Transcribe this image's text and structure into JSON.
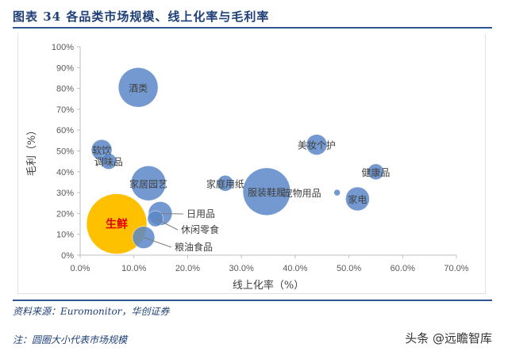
{
  "header": {
    "title": "图表 34   各品类市场规模、线上化率与毛利率"
  },
  "footer": {
    "source": "资料来源：Euromonitor，华创证券",
    "note": "注：圆圈大小代表市场规模",
    "watermark": "头条 @远瞻智库"
  },
  "chart_data": {
    "type": "bubble",
    "xlabel": "线上化率（%）",
    "ylabel": "毛利（%）",
    "xlim": [
      0,
      70
    ],
    "ylim": [
      0,
      100
    ],
    "xticks": [
      "0.0%",
      "10.0%",
      "20.0%",
      "30.0%",
      "40.0%",
      "50.0%",
      "60.0%",
      "70.0%"
    ],
    "yticks": [
      "0%",
      "10%",
      "20%",
      "30%",
      "40%",
      "50%",
      "60%",
      "70%",
      "80%",
      "90%",
      "100%"
    ],
    "grid": false,
    "colors": {
      "default": "#5b87c8",
      "highlight": "#ffc000",
      "highlight_label": "#e00000"
    },
    "points": [
      {
        "label": "酒类",
        "x": 10.8,
        "y": 80.5,
        "size": 625
      },
      {
        "label": "软饮",
        "x": 4.0,
        "y": 50.5,
        "size": 169
      },
      {
        "label": "调味品",
        "x": 5.3,
        "y": 45,
        "size": 100
      },
      {
        "label": "家居园艺",
        "x": 12.7,
        "y": 34.5,
        "size": 484
      },
      {
        "label": "家庭用纸",
        "x": 27.0,
        "y": 34.5,
        "size": 100
      },
      {
        "label": "服装鞋履",
        "x": 34.7,
        "y": 30.5,
        "size": 900
      },
      {
        "label": "美妆个护",
        "x": 44.0,
        "y": 53,
        "size": 169
      },
      {
        "label": "健康品",
        "x": 55.0,
        "y": 40,
        "size": 100
      },
      {
        "label": "宠物用品",
        "x": 47.8,
        "y": 30,
        "size": 16
      },
      {
        "label": "家电",
        "x": 51.6,
        "y": 27,
        "size": 225
      },
      {
        "label": "日用品",
        "x": 14.9,
        "y": 20,
        "size": 225
      },
      {
        "label": "休闲零食",
        "x": 14.0,
        "y": 17.5,
        "size": 100
      },
      {
        "label": "粮油食品",
        "x": 11.8,
        "y": 8.5,
        "size": 196
      },
      {
        "label": "生鲜",
        "x": 6.8,
        "y": 15,
        "size": 1444,
        "highlight": true
      }
    ]
  }
}
